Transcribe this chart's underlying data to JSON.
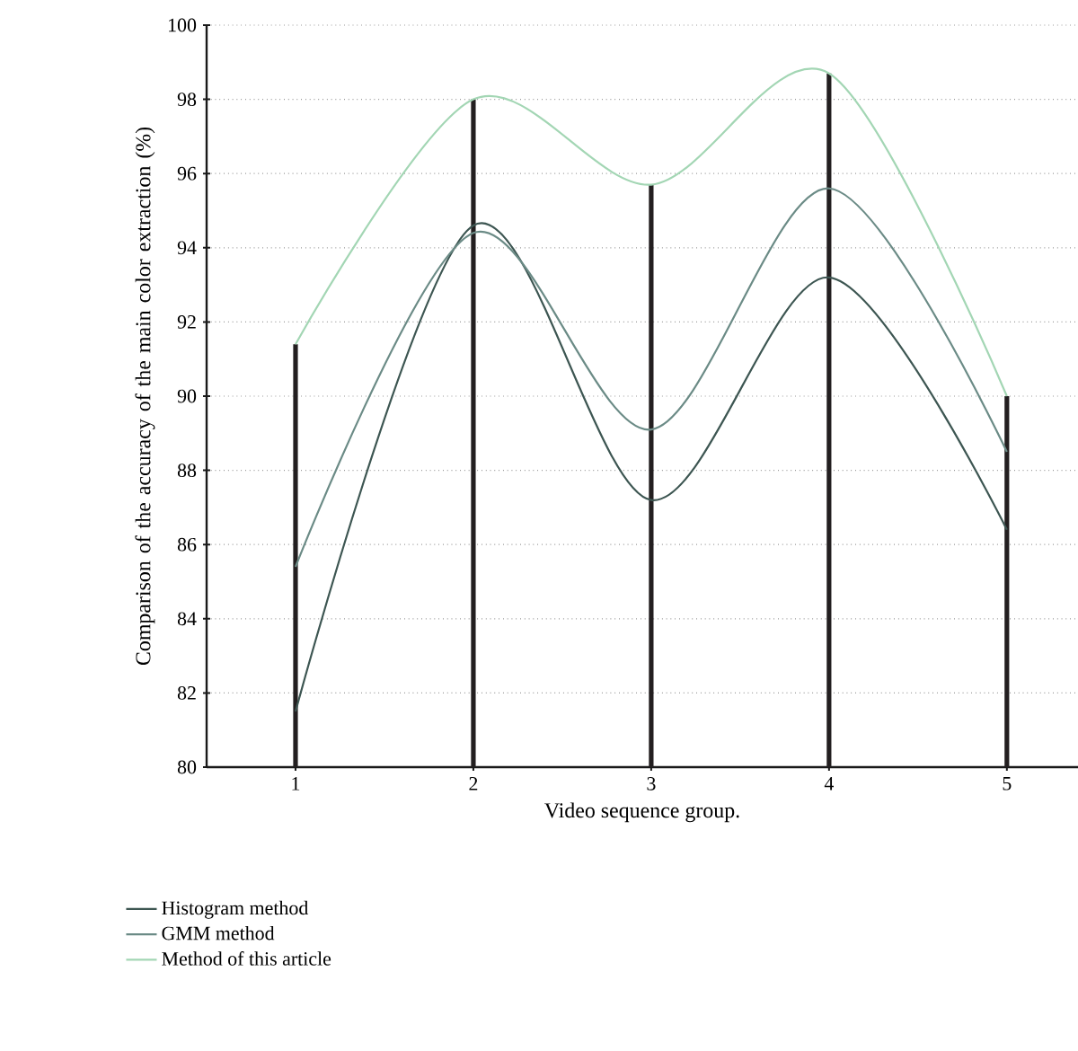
{
  "chart_data": {
    "type": "line",
    "xlabel": "Video sequence group.",
    "ylabel": "Comparison of the accuracy of the main color extraction (%)",
    "x": [
      1,
      2,
      3,
      4,
      5
    ],
    "xlim": [
      0.5,
      5.4
    ],
    "xticks": [
      1,
      2,
      3,
      4,
      5
    ],
    "ylim": [
      80,
      100
    ],
    "yticks": [
      80,
      82,
      84,
      86,
      88,
      90,
      92,
      94,
      96,
      98,
      100
    ],
    "grid": "y",
    "legend": "bottom",
    "marker": "none",
    "line_style": "solid",
    "series": [
      {
        "type": "bar",
        "color": "#231f20",
        "values": [
          91.4,
          98.0,
          95.7,
          98.7,
          90.0
        ]
      },
      {
        "name": "Histogram method",
        "color": "#3d5652",
        "values": [
          81.5,
          94.6,
          87.2,
          93.2,
          86.4
        ]
      },
      {
        "name": "GMM method",
        "color": "#6b8b86",
        "values": [
          85.4,
          94.4,
          89.1,
          95.6,
          88.5
        ]
      },
      {
        "name": "Method of this article",
        "color": "#a3d6b4",
        "values": [
          91.4,
          98.0,
          95.7,
          98.7,
          90.0
        ]
      }
    ]
  }
}
